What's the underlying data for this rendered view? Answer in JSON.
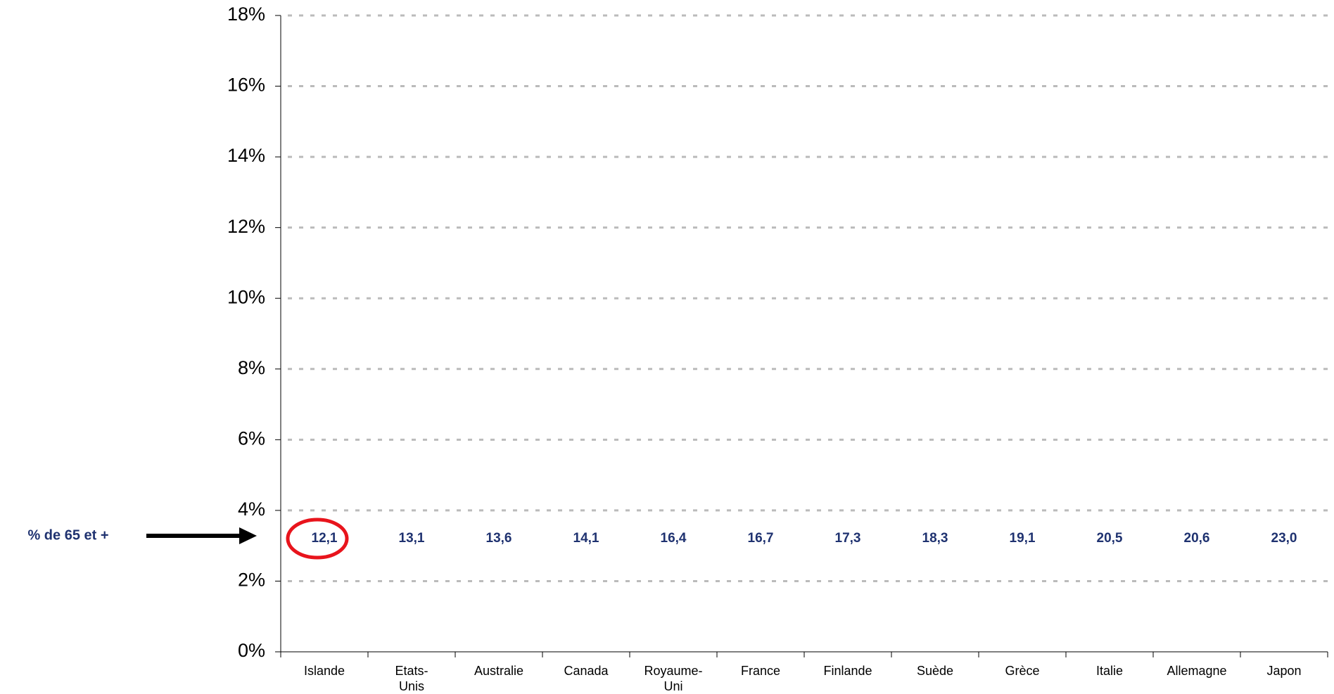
{
  "chart_data": {
    "type": "label-row",
    "annotation": "% de 65 et +",
    "categories": [
      "Islande",
      "Etats-Unis",
      "Australie",
      "Canada",
      "Royaume-Uni",
      "France",
      "Finlande",
      "Suède",
      "Grèce",
      "Italie",
      "Allemagne",
      "Japon"
    ],
    "values": [
      12.1,
      13.1,
      13.6,
      14.1,
      16.4,
      16.7,
      17.3,
      18.3,
      19.1,
      20.5,
      20.6,
      23.0
    ],
    "value_labels": [
      "12,1",
      "13,1",
      "13,6",
      "14,1",
      "16,4",
      "16,7",
      "17,3",
      "18,3",
      "19,1",
      "20,5",
      "20,6",
      "23,0"
    ],
    "ylim": [
      0,
      18
    ],
    "yticks": [
      {
        "value": 0,
        "label": "0%"
      },
      {
        "value": 2,
        "label": "2%"
      },
      {
        "value": 4,
        "label": "4%"
      },
      {
        "value": 6,
        "label": "6%"
      },
      {
        "value": 8,
        "label": "8%"
      },
      {
        "value": 10,
        "label": "10%"
      },
      {
        "value": 12,
        "label": "12%"
      },
      {
        "value": 14,
        "label": "14%"
      },
      {
        "value": 16,
        "label": "16%"
      },
      {
        "value": 18,
        "label": "18%"
      }
    ],
    "grid": true,
    "label_color": "#1f3270",
    "highlight_color": "#e8141c"
  }
}
